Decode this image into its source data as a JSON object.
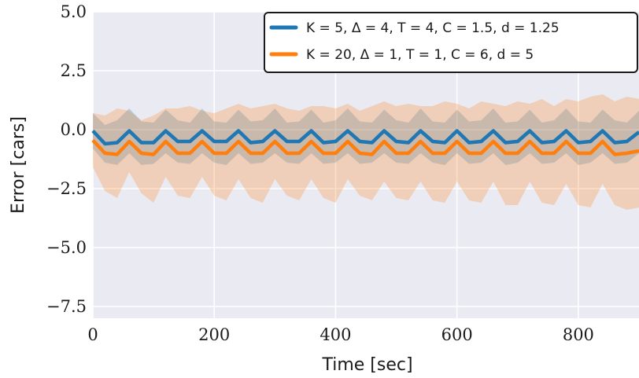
{
  "chart_data": {
    "type": "line",
    "xlabel": "Time [sec]",
    "ylabel": "Error [cars]",
    "xlim": [
      0,
      900
    ],
    "ylim": [
      -8.0,
      5.0
    ],
    "xticks": [
      0,
      200,
      400,
      600,
      800
    ],
    "xtick_labels": [
      "0",
      "200",
      "400",
      "600",
      "800"
    ],
    "yticks": [
      5.0,
      2.5,
      0.0,
      -2.5,
      -5.0,
      -7.5
    ],
    "ytick_labels": [
      "5.0",
      "2.5",
      "0.0",
      "−2.5",
      "−5.0",
      "−7.5"
    ],
    "grid": true,
    "legend_position": "top-right",
    "x": [
      0,
      20,
      40,
      60,
      80,
      100,
      120,
      140,
      160,
      180,
      200,
      220,
      240,
      260,
      280,
      300,
      320,
      340,
      360,
      380,
      400,
      420,
      440,
      460,
      480,
      500,
      520,
      540,
      560,
      580,
      600,
      620,
      640,
      660,
      680,
      700,
      720,
      740,
      760,
      780,
      800,
      820,
      840,
      860,
      880,
      900
    ],
    "series": [
      {
        "name": "K = 5, Δ = 4, T = 4, C = 1.5, d = 1.25",
        "color": "#1f77b4",
        "values": [
          -0.05,
          -0.6,
          -0.55,
          -0.05,
          -0.55,
          -0.55,
          -0.05,
          -0.5,
          -0.5,
          -0.05,
          -0.5,
          -0.5,
          -0.05,
          -0.55,
          -0.5,
          -0.05,
          -0.5,
          -0.5,
          -0.05,
          -0.55,
          -0.5,
          -0.05,
          -0.5,
          -0.55,
          -0.05,
          -0.5,
          -0.55,
          -0.05,
          -0.5,
          -0.55,
          -0.05,
          -0.55,
          -0.5,
          -0.05,
          -0.55,
          -0.5,
          -0.05,
          -0.55,
          -0.5,
          -0.05,
          -0.55,
          -0.5,
          -0.05,
          -0.55,
          -0.5,
          -0.1
        ],
        "upper": [
          0.7,
          0.2,
          0.4,
          0.9,
          0.35,
          0.3,
          0.85,
          0.4,
          0.3,
          0.9,
          0.35,
          0.3,
          0.85,
          0.35,
          0.4,
          0.9,
          0.3,
          0.35,
          0.85,
          0.3,
          0.4,
          0.9,
          0.35,
          0.3,
          0.85,
          0.4,
          0.3,
          0.9,
          0.35,
          0.3,
          0.85,
          0.35,
          0.4,
          0.9,
          0.3,
          0.35,
          0.85,
          0.3,
          0.4,
          0.9,
          0.35,
          0.3,
          0.85,
          0.4,
          0.3,
          0.8
        ],
        "lower": [
          -0.8,
          -1.4,
          -1.5,
          -1.0,
          -1.5,
          -1.45,
          -1.0,
          -1.4,
          -1.45,
          -1.0,
          -1.4,
          -1.5,
          -1.0,
          -1.45,
          -1.4,
          -1.0,
          -1.4,
          -1.45,
          -1.0,
          -1.45,
          -1.4,
          -1.0,
          -1.45,
          -1.4,
          -1.0,
          -1.4,
          -1.45,
          -1.0,
          -1.4,
          -1.5,
          -1.0,
          -1.45,
          -1.4,
          -1.0,
          -1.5,
          -1.4,
          -1.0,
          -1.45,
          -1.4,
          -1.0,
          -1.5,
          -1.4,
          -1.0,
          -1.45,
          -1.4,
          -1.0
        ]
      },
      {
        "name": "K = 20, Δ = 1, T = 1, C = 6, d = 5",
        "color": "#ff7f0e",
        "values": [
          -0.45,
          -1.0,
          -1.05,
          -0.5,
          -1.0,
          -1.05,
          -0.5,
          -1.0,
          -1.0,
          -0.5,
          -1.0,
          -1.0,
          -0.5,
          -1.0,
          -1.0,
          -0.5,
          -1.0,
          -1.0,
          -0.5,
          -1.0,
          -1.0,
          -0.5,
          -1.0,
          -1.05,
          -0.5,
          -1.0,
          -1.0,
          -0.5,
          -1.0,
          -1.0,
          -0.5,
          -1.0,
          -1.0,
          -0.5,
          -1.0,
          -1.0,
          -0.5,
          -1.0,
          -1.0,
          -0.5,
          -1.0,
          -1.0,
          -0.5,
          -1.05,
          -1.0,
          -0.9
        ],
        "upper": [
          0.7,
          0.6,
          0.9,
          0.8,
          0.4,
          0.6,
          0.9,
          0.9,
          1.0,
          0.8,
          0.7,
          0.9,
          1.1,
          0.9,
          1.0,
          1.1,
          0.9,
          0.8,
          1.0,
          1.0,
          0.9,
          1.1,
          0.8,
          1.0,
          1.2,
          1.0,
          1.1,
          1.0,
          1.0,
          1.2,
          1.1,
          0.9,
          1.2,
          1.1,
          1.0,
          1.2,
          1.1,
          1.3,
          1.0,
          1.3,
          1.2,
          1.4,
          1.5,
          1.2,
          1.4,
          1.3
        ],
        "lower": [
          -1.6,
          -2.6,
          -2.9,
          -1.8,
          -2.7,
          -3.1,
          -2.0,
          -2.8,
          -2.9,
          -2.0,
          -2.8,
          -3.0,
          -2.1,
          -2.9,
          -3.1,
          -2.1,
          -2.8,
          -3.0,
          -2.1,
          -2.9,
          -3.1,
          -2.1,
          -2.8,
          -3.0,
          -2.2,
          -2.9,
          -3.0,
          -2.2,
          -3.0,
          -3.1,
          -2.2,
          -3.0,
          -3.1,
          -2.2,
          -3.2,
          -3.2,
          -2.2,
          -3.1,
          -3.2,
          -2.3,
          -3.2,
          -3.3,
          -2.3,
          -3.2,
          -3.4,
          -3.3
        ]
      }
    ]
  }
}
